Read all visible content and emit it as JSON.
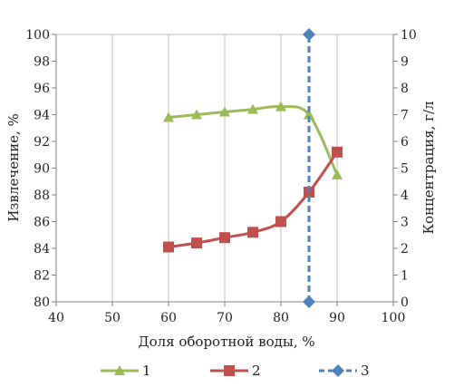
{
  "chart_data": {
    "type": "line",
    "title": "",
    "xlabel": "Доля оборотной воды, %",
    "ylabel_left": "Извлечение, %",
    "ylabel_right": "Концентрация, г/л",
    "xlim": [
      40,
      100
    ],
    "xticks": [
      "40",
      "50",
      "60",
      "70",
      "80",
      "90",
      "100"
    ],
    "ylim_left": [
      80,
      100
    ],
    "yticks_left": [
      "80",
      "82",
      "84",
      "86",
      "88",
      "90",
      "92",
      "94",
      "96",
      "98",
      "100"
    ],
    "ylim_right": [
      0,
      10
    ],
    "yticks_right": [
      "0",
      "1",
      "2",
      "3",
      "4",
      "5",
      "6",
      "7",
      "8",
      "9",
      "10"
    ],
    "grid": "vertical",
    "legend_position": "bottom",
    "series": [
      {
        "name": "1",
        "axis": "left",
        "color": "#9bbb59",
        "marker": "triangle",
        "line": "solid",
        "x": [
          60,
          65,
          70,
          75,
          80,
          85,
          90
        ],
        "y": [
          93.8,
          94.0,
          94.2,
          94.4,
          94.6,
          94.0,
          89.5
        ]
      },
      {
        "name": "2",
        "axis": "right",
        "color": "#c0504d",
        "marker": "square",
        "line": "solid",
        "x": [
          60,
          65,
          70,
          75,
          80,
          85,
          90
        ],
        "y": [
          2.05,
          2.2,
          2.4,
          2.6,
          3.0,
          4.1,
          5.6
        ]
      },
      {
        "name": "3",
        "axis": "right",
        "color": "#4f81bd",
        "marker": "diamond",
        "line": "dashed",
        "x": [
          85,
          85
        ],
        "y": [
          0,
          10
        ]
      }
    ]
  }
}
